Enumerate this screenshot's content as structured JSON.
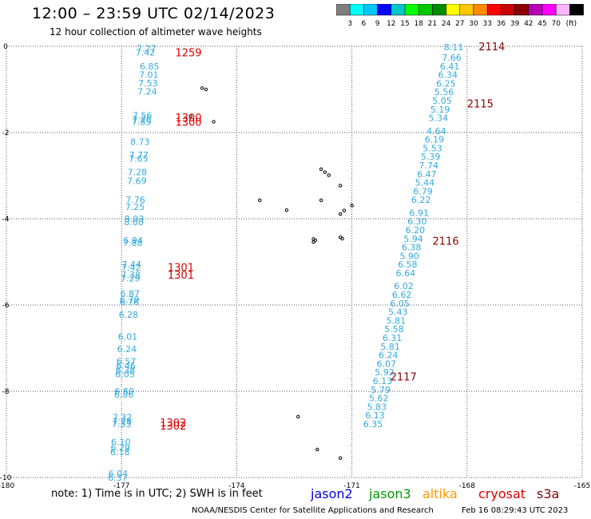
{
  "title": "12:00 – 23:59 UTC 02/14/2023",
  "subtitle": "12 hour collection of altimeter wave heights",
  "colorbar": {
    "colors": [
      "#7f7f7f",
      "#00ffff",
      "#00c8ff",
      "#0000ff",
      "#00c8c8",
      "#00ff00",
      "#00c800",
      "#008c00",
      "#ffff00",
      "#ffc800",
      "#ff8c00",
      "#ff0000",
      "#c80000",
      "#8c0000",
      "#b400b4",
      "#ff00ff",
      "#ffb4ff",
      "#000000"
    ],
    "ticks": [
      "3",
      "6",
      "9",
      "12",
      "15",
      "18",
      "21",
      "24",
      "27",
      "30",
      "33",
      "36",
      "39",
      "42",
      "45",
      "70"
    ],
    "unit": "(ft)"
  },
  "note": "note:  1) Time is in UTC; 2) SWH is in feet",
  "satellites": [
    {
      "name": "jason2",
      "color": "#0000dd"
    },
    {
      "name": "jason3",
      "color": "#009900"
    },
    {
      "name": "altika",
      "color": "#ff9900"
    },
    {
      "name": "cryosat",
      "color": "#dd0000"
    },
    {
      "name": "s3a",
      "color": "#880000"
    }
  ],
  "credit": "NOAA/NESDIS Center for Satellite Applications and Research",
  "timestamp": "Feb 16 08:29:43 UTC 2023",
  "chart_data": {
    "type": "scatter",
    "xlim": [
      -180,
      -165
    ],
    "ylim": [
      -10,
      0
    ],
    "x_ticks": [
      "-180",
      "-177",
      "-174",
      "-171",
      "-168",
      "-165"
    ],
    "y_ticks": [
      "0",
      "-2",
      "-4",
      "-6",
      "-8",
      "-10"
    ],
    "grid": true,
    "series": [
      {
        "name": "cryosat",
        "color": "#dd0000",
        "label_color": "#33aadd",
        "points": [
          [
            -176.35,
            -0.05,
            "7.27"
          ],
          [
            -176.38,
            -0.14,
            "7.42"
          ],
          [
            -176.27,
            -0.46,
            "6.85"
          ],
          [
            -176.29,
            -0.66,
            "7.01"
          ],
          [
            -176.31,
            -0.85,
            "7.53"
          ],
          [
            -176.33,
            -1.05,
            "7.24"
          ],
          [
            -176.46,
            -1.6,
            "7.56"
          ],
          [
            -176.47,
            -1.69,
            "7.26"
          ],
          [
            -176.48,
            -1.75,
            "7.85"
          ],
          [
            -176.52,
            -2.21,
            "8.73"
          ],
          [
            -176.55,
            -2.52,
            "7.77"
          ],
          [
            -176.56,
            -2.6,
            "7.65"
          ],
          [
            -176.59,
            -2.92,
            "7.28"
          ],
          [
            -176.6,
            -3.12,
            "7.69"
          ],
          [
            -176.64,
            -3.56,
            "7.76"
          ],
          [
            -176.65,
            -3.72,
            "7.25"
          ],
          [
            -176.67,
            -4.0,
            "8.03"
          ],
          [
            -176.68,
            -4.07,
            "8.08"
          ],
          [
            -176.7,
            -4.5,
            "6.94"
          ],
          [
            -176.71,
            -4.56,
            "7.88"
          ],
          [
            -176.74,
            -5.06,
            "7.44"
          ],
          [
            -176.75,
            -5.13,
            "7.42"
          ],
          [
            -176.76,
            -5.3,
            "7.38"
          ],
          [
            -176.77,
            -5.38,
            "7.29"
          ],
          [
            -176.78,
            -5.73,
            "6.87"
          ],
          [
            -176.79,
            -5.87,
            "6.79"
          ],
          [
            -176.8,
            -5.93,
            "6.76"
          ],
          [
            -176.82,
            -6.22,
            "6.28"
          ],
          [
            -176.84,
            -6.73,
            "6.01"
          ],
          [
            -176.86,
            -7.02,
            "6.24"
          ],
          [
            -176.88,
            -7.31,
            "6.57"
          ],
          [
            -176.89,
            -7.41,
            "6.46"
          ],
          [
            -176.9,
            -7.51,
            "6.38"
          ],
          [
            -176.91,
            -7.6,
            "6.05"
          ],
          [
            -176.93,
            -8.0,
            "6.80"
          ],
          [
            -176.94,
            -8.07,
            "6.86"
          ],
          [
            -176.98,
            -8.6,
            "7.32"
          ],
          [
            -176.99,
            -8.69,
            "7.28"
          ],
          [
            -177.0,
            -8.76,
            "7.33"
          ],
          [
            -177.02,
            -9.18,
            "6.10"
          ],
          [
            -177.03,
            -9.31,
            "6.29"
          ],
          [
            -177.04,
            -9.41,
            "6.18"
          ],
          [
            -177.09,
            -9.91,
            "6.04"
          ],
          [
            -177.1,
            -10.0,
            "6.37"
          ]
        ],
        "time_labels": [
          [
            -175.6,
            -0.14,
            "1259"
          ],
          [
            -175.6,
            -1.65,
            "1300"
          ],
          [
            -175.6,
            -1.75,
            "1300"
          ],
          [
            -175.8,
            -5.12,
            "1301"
          ],
          [
            -175.8,
            -5.3,
            "1301"
          ],
          [
            -176.0,
            -8.72,
            "1302"
          ],
          [
            -176.0,
            -8.8,
            "1302"
          ]
        ]
      },
      {
        "name": "s3a",
        "color": "#880000",
        "label_color": "#33aadd",
        "points": [
          [
            -168.35,
            -0.02,
            "8.11"
          ],
          [
            -168.4,
            -0.26,
            "7.66"
          ],
          [
            -168.45,
            -0.46,
            "6.41"
          ],
          [
            -168.5,
            -0.66,
            "6.34"
          ],
          [
            -168.55,
            -0.86,
            "6.25"
          ],
          [
            -168.6,
            -1.06,
            "5.56"
          ],
          [
            -168.65,
            -1.26,
            "5.05"
          ],
          [
            -168.7,
            -1.46,
            "5.19"
          ],
          [
            -168.75,
            -1.66,
            "5.34"
          ],
          [
            -168.8,
            -1.96,
            "4.64"
          ],
          [
            -168.85,
            -2.16,
            "6.19"
          ],
          [
            -168.9,
            -2.36,
            "5.53"
          ],
          [
            -168.95,
            -2.56,
            "5.39"
          ],
          [
            -169.0,
            -2.76,
            "7.74"
          ],
          [
            -169.05,
            -2.96,
            "6.47"
          ],
          [
            -169.1,
            -3.16,
            "5.44"
          ],
          [
            -169.15,
            -3.36,
            "6.79"
          ],
          [
            -169.2,
            -3.56,
            "6.22"
          ],
          [
            -169.25,
            -3.86,
            "6.91"
          ],
          [
            -169.3,
            -4.06,
            "6.30"
          ],
          [
            -169.35,
            -4.26,
            "6.20"
          ],
          [
            -169.4,
            -4.46,
            "5.94"
          ],
          [
            -169.45,
            -4.66,
            "6.38"
          ],
          [
            -169.5,
            -4.86,
            "5.90"
          ],
          [
            -169.55,
            -5.06,
            "6.58"
          ],
          [
            -169.6,
            -5.26,
            "6.64"
          ],
          [
            -169.65,
            -5.56,
            "6.02"
          ],
          [
            -169.7,
            -5.76,
            "6.62"
          ],
          [
            -169.75,
            -5.96,
            "6.05"
          ],
          [
            -169.8,
            -6.16,
            "5.43"
          ],
          [
            -169.85,
            -6.36,
            "5.81"
          ],
          [
            -169.9,
            -6.56,
            "5.58"
          ],
          [
            -169.95,
            -6.76,
            "6.31"
          ],
          [
            -170.0,
            -6.96,
            "5.81"
          ],
          [
            -170.05,
            -7.16,
            "6.24"
          ],
          [
            -170.1,
            -7.36,
            "6.07"
          ],
          [
            -170.15,
            -7.56,
            "5.92"
          ],
          [
            -170.2,
            -7.76,
            "6.13"
          ],
          [
            -170.25,
            -7.96,
            "5.79"
          ],
          [
            -170.3,
            -8.16,
            "5.62"
          ],
          [
            -170.35,
            -8.36,
            "5.83"
          ],
          [
            -170.4,
            -8.56,
            "6.13"
          ],
          [
            -170.45,
            -8.76,
            "6.35"
          ]
        ],
        "time_labels": [
          [
            -167.7,
            0.0,
            "2114"
          ],
          [
            -168.0,
            -1.32,
            "2115"
          ],
          [
            -168.9,
            -4.51,
            "2116"
          ],
          [
            -170.0,
            -7.66,
            "2117"
          ]
        ]
      }
    ],
    "islands": [
      [
        -174.9,
        -0.97
      ],
      [
        -174.8,
        -1.0
      ],
      [
        -174.6,
        -1.75
      ],
      [
        -175.2,
        -1.62
      ],
      [
        -173.4,
        -3.57
      ],
      [
        -172.7,
        -3.8
      ],
      [
        -171.8,
        -2.85
      ],
      [
        -171.7,
        -2.92
      ],
      [
        -171.6,
        -2.99
      ],
      [
        -171.3,
        -3.23
      ],
      [
        -171.8,
        -3.57
      ],
      [
        -171.2,
        -3.81
      ],
      [
        -171.0,
        -3.69
      ],
      [
        -171.3,
        -3.89
      ],
      [
        -172.0,
        -4.47
      ],
      [
        -171.95,
        -4.5
      ],
      [
        -172.0,
        -4.54
      ],
      [
        -171.3,
        -4.43
      ],
      [
        -171.25,
        -4.46
      ],
      [
        -172.4,
        -8.59
      ],
      [
        -171.9,
        -9.35
      ],
      [
        -171.3,
        -9.55
      ]
    ]
  }
}
